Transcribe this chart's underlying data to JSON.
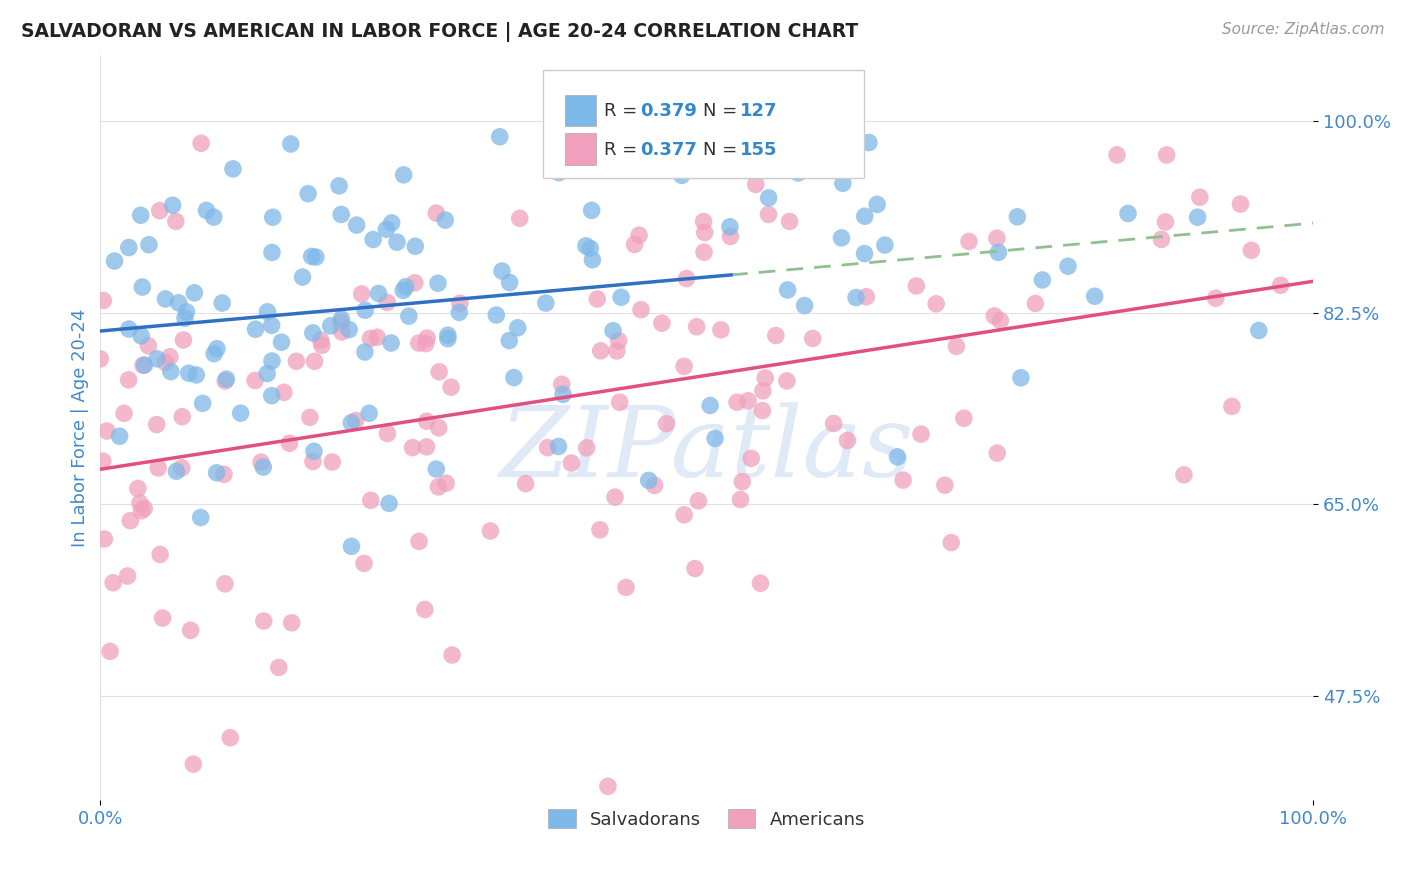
{
  "title": "SALVADORAN VS AMERICAN IN LABOR FORCE | AGE 20-24 CORRELATION CHART",
  "source": "Source: ZipAtlas.com",
  "ylabel": "In Labor Force | Age 20-24",
  "xlim": [
    0.0,
    1.0
  ],
  "ylim": [
    0.38,
    1.06
  ],
  "x_tick_labels": [
    "0.0%",
    "100.0%"
  ],
  "x_ticks": [
    0.0,
    1.0
  ],
  "y_tick_labels": [
    "47.5%",
    "65.0%",
    "82.5%",
    "100.0%"
  ],
  "y_ticks": [
    0.475,
    0.65,
    0.825,
    1.0
  ],
  "blue_R": 0.379,
  "blue_N": 127,
  "pink_R": 0.377,
  "pink_N": 155,
  "blue_color": "#7EB8E8",
  "pink_color": "#F0A0BC",
  "blue_line_color": "#3070C0",
  "pink_line_color": "#E05080",
  "dash_line_color": "#90C090",
  "title_color": "#222222",
  "tick_label_color": "#4488CC",
  "source_color": "#999999",
  "legend_R_color": "#3388CC",
  "watermark": "ZIPatlas",
  "watermark_color": "#C8D8F0",
  "grid_color": "#E0E0EC"
}
